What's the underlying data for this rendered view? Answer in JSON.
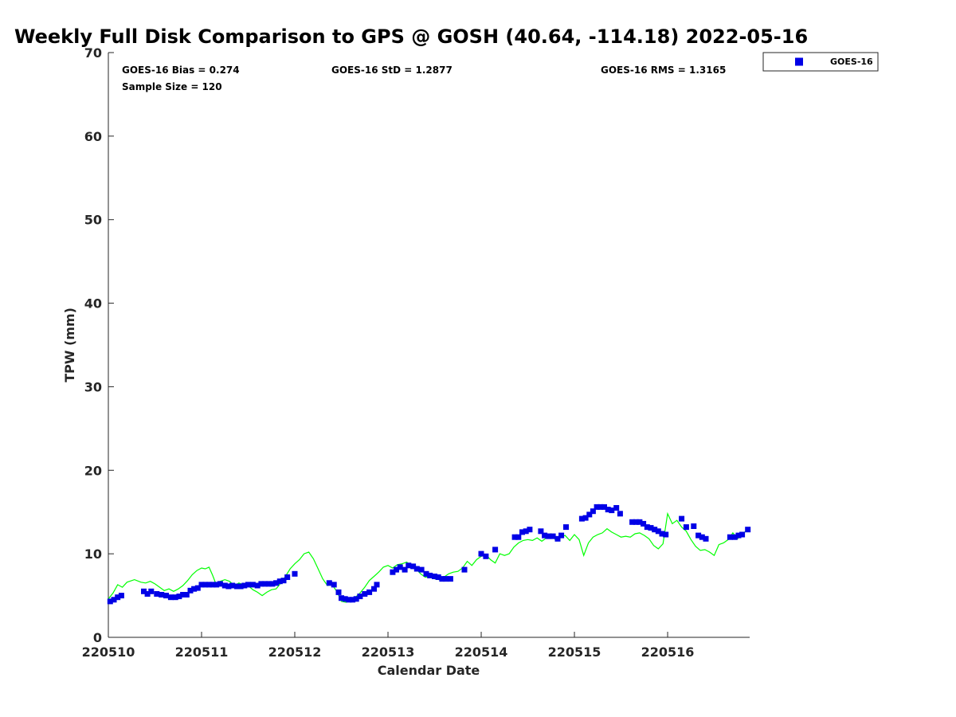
{
  "chart_data": {
    "type": "scatter",
    "title": "Weekly Full Disk Comparison to GPS @ GOSH (40.64, -114.18) 2022-05-16",
    "xlabel": "Calendar Date",
    "ylabel": "TPW (mm)",
    "xlim": [
      0,
      6.88
    ],
    "ylim": [
      0,
      70
    ],
    "x_ticks": [
      {
        "pos": 0,
        "label": "220510"
      },
      {
        "pos": 1,
        "label": "220511"
      },
      {
        "pos": 2,
        "label": "220512"
      },
      {
        "pos": 3,
        "label": "220513"
      },
      {
        "pos": 4,
        "label": "220514"
      },
      {
        "pos": 5,
        "label": "220515"
      },
      {
        "pos": 6,
        "label": "220516"
      }
    ],
    "y_ticks": [
      {
        "pos": 0,
        "label": "0"
      },
      {
        "pos": 10,
        "label": "10"
      },
      {
        "pos": 20,
        "label": "20"
      },
      {
        "pos": 30,
        "label": "30"
      },
      {
        "pos": 40,
        "label": "40"
      },
      {
        "pos": 50,
        "label": "50"
      },
      {
        "pos": 60,
        "label": "60"
      },
      {
        "pos": 70,
        "label": "70"
      }
    ],
    "grid": false,
    "legend_position": "outside-top-right",
    "stats": {
      "bias": "GOES-16 Bias = 0.274",
      "sample": "Sample Size = 120",
      "std": "GOES-16 StD = 1.2877",
      "rms": "GOES-16 RMS = 1.3165"
    },
    "series": [
      {
        "name": "GOES-16",
        "kind": "markers",
        "color": "#0000e6",
        "points": [
          [
            0.02,
            4.3
          ],
          [
            0.06,
            4.5
          ],
          [
            0.1,
            4.8
          ],
          [
            0.14,
            5.0
          ],
          [
            0.38,
            5.5
          ],
          [
            0.42,
            5.2
          ],
          [
            0.46,
            5.5
          ],
          [
            0.52,
            5.2
          ],
          [
            0.57,
            5.1
          ],
          [
            0.62,
            5.0
          ],
          [
            0.67,
            4.8
          ],
          [
            0.72,
            4.8
          ],
          [
            0.76,
            4.9
          ],
          [
            0.8,
            5.1
          ],
          [
            0.84,
            5.1
          ],
          [
            0.88,
            5.6
          ],
          [
            0.92,
            5.8
          ],
          [
            0.96,
            5.9
          ],
          [
            1.0,
            6.3
          ],
          [
            1.04,
            6.3
          ],
          [
            1.08,
            6.3
          ],
          [
            1.12,
            6.3
          ],
          [
            1.16,
            6.3
          ],
          [
            1.2,
            6.4
          ],
          [
            1.25,
            6.2
          ],
          [
            1.29,
            6.1
          ],
          [
            1.33,
            6.2
          ],
          [
            1.38,
            6.1
          ],
          [
            1.42,
            6.1
          ],
          [
            1.46,
            6.2
          ],
          [
            1.5,
            6.3
          ],
          [
            1.55,
            6.3
          ],
          [
            1.6,
            6.2
          ],
          [
            1.64,
            6.4
          ],
          [
            1.68,
            6.4
          ],
          [
            1.72,
            6.4
          ],
          [
            1.76,
            6.4
          ],
          [
            1.8,
            6.5
          ],
          [
            1.84,
            6.7
          ],
          [
            1.88,
            6.8
          ],
          [
            1.92,
            7.2
          ],
          [
            2.0,
            7.6
          ],
          [
            2.37,
            6.5
          ],
          [
            2.42,
            6.3
          ],
          [
            2.47,
            5.4
          ],
          [
            2.5,
            4.7
          ],
          [
            2.54,
            4.6
          ],
          [
            2.58,
            4.5
          ],
          [
            2.62,
            4.5
          ],
          [
            2.66,
            4.6
          ],
          [
            2.7,
            4.9
          ],
          [
            2.75,
            5.2
          ],
          [
            2.8,
            5.4
          ],
          [
            2.85,
            5.8
          ],
          [
            2.88,
            6.3
          ],
          [
            3.05,
            7.8
          ],
          [
            3.09,
            8.1
          ],
          [
            3.13,
            8.4
          ],
          [
            3.18,
            8.1
          ],
          [
            3.22,
            8.6
          ],
          [
            3.27,
            8.5
          ],
          [
            3.31,
            8.2
          ],
          [
            3.36,
            8.1
          ],
          [
            3.41,
            7.6
          ],
          [
            3.45,
            7.4
          ],
          [
            3.5,
            7.3
          ],
          [
            3.54,
            7.2
          ],
          [
            3.58,
            7.0
          ],
          [
            3.62,
            7.0
          ],
          [
            3.67,
            7.0
          ],
          [
            3.82,
            8.1
          ],
          [
            4.0,
            10.0
          ],
          [
            4.05,
            9.7
          ],
          [
            4.15,
            10.5
          ],
          [
            4.36,
            12.0
          ],
          [
            4.4,
            12.0
          ],
          [
            4.44,
            12.6
          ],
          [
            4.48,
            12.7
          ],
          [
            4.52,
            12.9
          ],
          [
            4.64,
            12.7
          ],
          [
            4.68,
            12.2
          ],
          [
            4.72,
            12.1
          ],
          [
            4.77,
            12.1
          ],
          [
            4.82,
            11.8
          ],
          [
            4.86,
            12.2
          ],
          [
            4.91,
            13.2
          ],
          [
            5.08,
            14.2
          ],
          [
            5.12,
            14.3
          ],
          [
            5.16,
            14.7
          ],
          [
            5.2,
            15.1
          ],
          [
            5.24,
            15.6
          ],
          [
            5.28,
            15.6
          ],
          [
            5.32,
            15.6
          ],
          [
            5.36,
            15.3
          ],
          [
            5.4,
            15.2
          ],
          [
            5.45,
            15.5
          ],
          [
            5.49,
            14.8
          ],
          [
            5.62,
            13.8
          ],
          [
            5.66,
            13.8
          ],
          [
            5.7,
            13.8
          ],
          [
            5.74,
            13.6
          ],
          [
            5.78,
            13.2
          ],
          [
            5.82,
            13.1
          ],
          [
            5.86,
            12.9
          ],
          [
            5.9,
            12.7
          ],
          [
            5.94,
            12.4
          ],
          [
            5.98,
            12.3
          ],
          [
            6.15,
            14.2
          ],
          [
            6.2,
            13.2
          ],
          [
            6.28,
            13.3
          ],
          [
            6.33,
            12.2
          ],
          [
            6.37,
            12.0
          ],
          [
            6.41,
            11.8
          ],
          [
            6.67,
            12.0
          ],
          [
            6.72,
            12.0
          ],
          [
            6.76,
            12.2
          ],
          [
            6.8,
            12.3
          ],
          [
            6.86,
            12.9
          ]
        ]
      },
      {
        "kind": "line",
        "color": "#00ff00",
        "points": [
          [
            0.0,
            4.6
          ],
          [
            0.05,
            5.3
          ],
          [
            0.1,
            6.3
          ],
          [
            0.15,
            6.0
          ],
          [
            0.2,
            6.6
          ],
          [
            0.28,
            6.9
          ],
          [
            0.35,
            6.6
          ],
          [
            0.4,
            6.5
          ],
          [
            0.45,
            6.7
          ],
          [
            0.5,
            6.4
          ],
          [
            0.55,
            6.0
          ],
          [
            0.6,
            5.6
          ],
          [
            0.65,
            5.8
          ],
          [
            0.7,
            5.5
          ],
          [
            0.75,
            5.8
          ],
          [
            0.8,
            6.2
          ],
          [
            0.85,
            6.8
          ],
          [
            0.9,
            7.5
          ],
          [
            0.95,
            8.0
          ],
          [
            1.0,
            8.3
          ],
          [
            1.04,
            8.2
          ],
          [
            1.08,
            8.4
          ],
          [
            1.12,
            7.4
          ],
          [
            1.15,
            6.5
          ],
          [
            1.2,
            6.7
          ],
          [
            1.25,
            6.9
          ],
          [
            1.3,
            6.7
          ],
          [
            1.35,
            6.2
          ],
          [
            1.4,
            6.5
          ],
          [
            1.45,
            6.3
          ],
          [
            1.5,
            6.2
          ],
          [
            1.55,
            5.7
          ],
          [
            1.6,
            5.4
          ],
          [
            1.65,
            5.0
          ],
          [
            1.7,
            5.4
          ],
          [
            1.75,
            5.7
          ],
          [
            1.8,
            5.8
          ],
          [
            1.85,
            6.5
          ],
          [
            1.9,
            7.3
          ],
          [
            1.95,
            8.2
          ],
          [
            2.0,
            8.8
          ],
          [
            2.05,
            9.3
          ],
          [
            2.1,
            10.0
          ],
          [
            2.15,
            10.2
          ],
          [
            2.2,
            9.4
          ],
          [
            2.25,
            8.2
          ],
          [
            2.3,
            7.0
          ],
          [
            2.35,
            6.2
          ],
          [
            2.4,
            6.3
          ],
          [
            2.45,
            5.5
          ],
          [
            2.5,
            4.3
          ],
          [
            2.55,
            4.2
          ],
          [
            2.6,
            4.4
          ],
          [
            2.65,
            4.8
          ],
          [
            2.7,
            5.3
          ],
          [
            2.75,
            6.0
          ],
          [
            2.8,
            6.8
          ],
          [
            2.85,
            7.3
          ],
          [
            2.9,
            7.8
          ],
          [
            2.95,
            8.4
          ],
          [
            3.0,
            8.6
          ],
          [
            3.05,
            8.3
          ],
          [
            3.1,
            8.7
          ],
          [
            3.15,
            8.8
          ],
          [
            3.2,
            9.0
          ],
          [
            3.25,
            8.6
          ],
          [
            3.3,
            8.2
          ],
          [
            3.35,
            7.6
          ],
          [
            3.4,
            7.2
          ],
          [
            3.45,
            7.3
          ],
          [
            3.5,
            7.0
          ],
          [
            3.55,
            6.9
          ],
          [
            3.6,
            7.2
          ],
          [
            3.65,
            7.6
          ],
          [
            3.7,
            7.8
          ],
          [
            3.75,
            7.9
          ],
          [
            3.8,
            8.3
          ],
          [
            3.85,
            9.1
          ],
          [
            3.9,
            8.6
          ],
          [
            3.95,
            9.3
          ],
          [
            4.0,
            9.7
          ],
          [
            4.05,
            9.9
          ],
          [
            4.1,
            9.3
          ],
          [
            4.15,
            8.9
          ],
          [
            4.2,
            10.0
          ],
          [
            4.25,
            9.8
          ],
          [
            4.3,
            10.0
          ],
          [
            4.35,
            10.8
          ],
          [
            4.4,
            11.3
          ],
          [
            4.45,
            11.6
          ],
          [
            4.5,
            11.7
          ],
          [
            4.55,
            11.6
          ],
          [
            4.6,
            11.9
          ],
          [
            4.65,
            11.5
          ],
          [
            4.7,
            11.9
          ],
          [
            4.75,
            12.4
          ],
          [
            4.8,
            11.6
          ],
          [
            4.85,
            12.0
          ],
          [
            4.9,
            12.2
          ],
          [
            4.95,
            11.6
          ],
          [
            5.0,
            12.3
          ],
          [
            5.05,
            11.7
          ],
          [
            5.1,
            9.8
          ],
          [
            5.15,
            11.3
          ],
          [
            5.2,
            12.0
          ],
          [
            5.25,
            12.3
          ],
          [
            5.3,
            12.5
          ],
          [
            5.35,
            13.0
          ],
          [
            5.4,
            12.6
          ],
          [
            5.45,
            12.3
          ],
          [
            5.5,
            12.0
          ],
          [
            5.55,
            12.1
          ],
          [
            5.6,
            12.0
          ],
          [
            5.65,
            12.4
          ],
          [
            5.7,
            12.5
          ],
          [
            5.75,
            12.2
          ],
          [
            5.8,
            11.8
          ],
          [
            5.85,
            11.0
          ],
          [
            5.9,
            10.6
          ],
          [
            5.95,
            11.2
          ],
          [
            6.0,
            14.8
          ],
          [
            6.05,
            13.6
          ],
          [
            6.1,
            14.0
          ],
          [
            6.15,
            13.2
          ],
          [
            6.2,
            12.7
          ],
          [
            6.25,
            11.7
          ],
          [
            6.3,
            10.9
          ],
          [
            6.35,
            10.4
          ],
          [
            6.4,
            10.5
          ],
          [
            6.45,
            10.2
          ],
          [
            6.5,
            9.8
          ],
          [
            6.55,
            11.1
          ],
          [
            6.6,
            11.3
          ],
          [
            6.65,
            11.7
          ],
          [
            6.7,
            12.5
          ],
          [
            6.75,
            11.8
          ],
          [
            6.8,
            12.4
          ],
          [
            6.88,
            13.0
          ]
        ]
      }
    ]
  }
}
